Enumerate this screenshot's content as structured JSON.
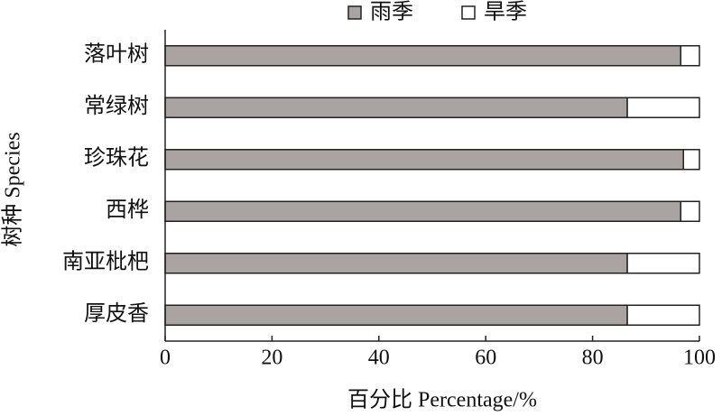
{
  "chart_data": {
    "type": "stacked-barh",
    "xlabel": "百分比  Percentage/%",
    "ylabel": "树种 Species",
    "categories": [
      "落叶树",
      "常绿树",
      "珍珠花",
      "西桦",
      "南亚枇杷",
      "厚皮香"
    ],
    "series": [
      {
        "name": "雨季",
        "color": "#a9a3a1",
        "values": [
          96.5,
          86.5,
          97,
          96.5,
          86.5,
          86.5
        ]
      },
      {
        "name": "旱季",
        "color": "#ffffff",
        "values": [
          3.5,
          13.5,
          3,
          3.5,
          13.5,
          13.5
        ]
      }
    ],
    "xlim": [
      0,
      100
    ],
    "xticks": [
      0,
      20,
      40,
      60,
      80,
      100
    ],
    "legend": "top"
  }
}
